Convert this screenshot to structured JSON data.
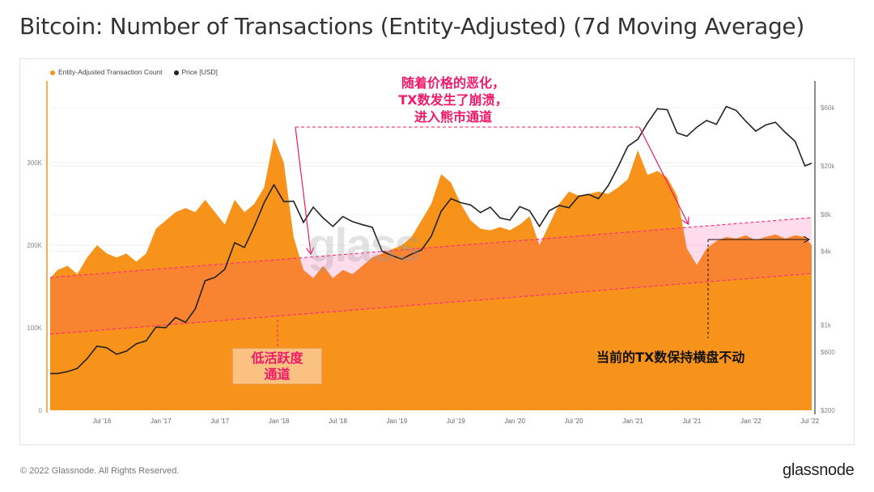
{
  "title": "Bitcoin: Number of Transactions (Entity-Adjusted) (7d Moving Average)",
  "footer": "© 2022 Glassnode. All Rights Reserved.",
  "logo": "glassnode",
  "watermark": "glass",
  "annotations": {
    "bear_channel": [
      "随着价格的恶化，",
      "TX数发生了崩溃，",
      "进入熊市通道"
    ],
    "low_activity": [
      "低活跃度",
      "通道"
    ],
    "sideways": "当前的TX数保持横盘不动"
  },
  "colors": {
    "tx": "#f7931a",
    "price": "#222222",
    "annotation": "#f0196a",
    "channel": "#ff3c96"
  },
  "chart_data": {
    "type": "area+line",
    "legend": [
      "Entity-Adjusted Transaction Count",
      "Price [USD]"
    ],
    "legend_position": "top-left",
    "grid": true,
    "x_ticks": [
      "Jul '16",
      "Jan '17",
      "Jul '17",
      "Jan '18",
      "Jul '18",
      "Jan '19",
      "Jul '19",
      "Jan '20",
      "Jul '20",
      "Jan '21",
      "Jul '21",
      "Jan '22",
      "Jul '22"
    ],
    "y_left_ticks": [
      "0",
      "100K",
      "200K",
      "300K"
    ],
    "y_left_range": [
      0,
      400000
    ],
    "y_right_ticks": [
      "$200",
      "$600",
      "$1k",
      "$4k",
      "$8k",
      "$20k",
      "$60k"
    ],
    "y_right_scale": "log",
    "y_right_range": [
      200,
      100000
    ],
    "x": [
      "2016-01",
      "2016-02",
      "2016-03",
      "2016-04",
      "2016-05",
      "2016-06",
      "2016-07",
      "2016-08",
      "2016-09",
      "2016-10",
      "2016-11",
      "2016-12",
      "2017-01",
      "2017-02",
      "2017-03",
      "2017-04",
      "2017-05",
      "2017-06",
      "2017-07",
      "2017-08",
      "2017-09",
      "2017-10",
      "2017-11",
      "2017-12",
      "2018-01",
      "2018-02",
      "2018-03",
      "2018-04",
      "2018-05",
      "2018-06",
      "2018-07",
      "2018-08",
      "2018-09",
      "2018-10",
      "2018-11",
      "2018-12",
      "2019-01",
      "2019-02",
      "2019-03",
      "2019-04",
      "2019-05",
      "2019-06",
      "2019-07",
      "2019-08",
      "2019-09",
      "2019-10",
      "2019-11",
      "2019-12",
      "2020-01",
      "2020-02",
      "2020-03",
      "2020-04",
      "2020-05",
      "2020-06",
      "2020-07",
      "2020-08",
      "2020-09",
      "2020-10",
      "2020-11",
      "2020-12",
      "2021-01",
      "2021-02",
      "2021-03",
      "2021-04",
      "2021-05",
      "2021-06",
      "2021-07",
      "2021-08",
      "2021-09",
      "2021-10",
      "2021-11",
      "2021-12",
      "2022-01",
      "2022-02",
      "2022-03",
      "2022-04",
      "2022-05",
      "2022-06",
      "2022-07"
    ],
    "series": [
      {
        "name": "Entity-Adjusted Transaction Count",
        "values": [
          160000,
          170000,
          175000,
          165000,
          185000,
          200000,
          190000,
          185000,
          190000,
          180000,
          190000,
          220000,
          230000,
          240000,
          245000,
          240000,
          255000,
          240000,
          225000,
          255000,
          240000,
          250000,
          270000,
          330000,
          300000,
          210000,
          170000,
          160000,
          175000,
          160000,
          170000,
          165000,
          175000,
          185000,
          190000,
          195000,
          200000,
          210000,
          230000,
          250000,
          286000,
          276000,
          250000,
          230000,
          220000,
          218000,
          222000,
          218000,
          225000,
          235000,
          200000,
          225000,
          250000,
          265000,
          260000,
          262000,
          265000,
          262000,
          270000,
          280000,
          315000,
          285000,
          290000,
          282000,
          260000,
          196000,
          176000,
          196000,
          205000,
          210000,
          208000,
          212000,
          206000,
          210000,
          213000,
          208000,
          212000,
          210000,
          200000
        ]
      },
      {
        "name": "Price [USD]",
        "values": [
          400,
          400,
          415,
          440,
          530,
          670,
          650,
          575,
          610,
          700,
          740,
          960,
          950,
          1150,
          1050,
          1350,
          2300,
          2450,
          2850,
          4700,
          4300,
          6400,
          10000,
          14000,
          10200,
          10300,
          6900,
          9200,
          7500,
          6400,
          7700,
          7000,
          6600,
          6300,
          4000,
          3700,
          3450,
          3800,
          4100,
          5300,
          8500,
          10800,
          10000,
          9600,
          8300,
          9200,
          7500,
          7200,
          9300,
          8600,
          6400,
          8600,
          9500,
          9100,
          11300,
          11700,
          10800,
          13800,
          19700,
          29000,
          33000,
          45000,
          58800,
          57700,
          37300,
          35000,
          41500,
          47100,
          43800,
          61300,
          57000,
          46300,
          38500,
          43200,
          45500,
          37700,
          31800,
          20000,
          21000
        ]
      }
    ]
  }
}
